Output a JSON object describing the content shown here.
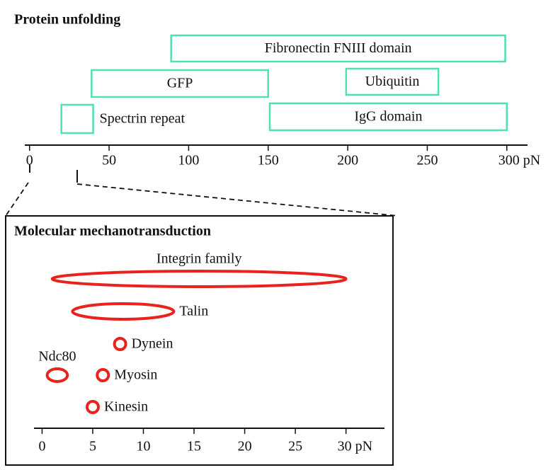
{
  "chart_data": [
    {
      "type": "range-box",
      "title": "Protein unfolding",
      "color": "#4fe0b4",
      "items": [
        {
          "name": "Fibronectin FNIII domain",
          "range": [
            89,
            299
          ]
        },
        {
          "name": "GFP",
          "range": [
            39,
            150
          ]
        },
        {
          "name": "Ubiquitin",
          "range": [
            199,
            257
          ]
        },
        {
          "name": "Spectrin repeat",
          "range": [
            20,
            40
          ]
        },
        {
          "name": "IgG domain",
          "range": [
            151,
            300
          ]
        }
      ],
      "xlim": [
        -3,
        313
      ],
      "xticks": [
        0,
        50,
        100,
        150,
        200,
        250,
        {
          "value": 300,
          "label": "300 pN"
        }
      ]
    },
    {
      "type": "range-ellipse",
      "title": "Molecular mechanotransduction",
      "color": "#e8231e",
      "items": [
        {
          "name": "Integrin family",
          "range": [
            1,
            30
          ]
        },
        {
          "name": "Talin",
          "range": [
            3,
            13
          ]
        },
        {
          "name": "Dynein",
          "value": 7.7
        },
        {
          "name": "Ndc80",
          "range": [
            0.5,
            2.5
          ]
        },
        {
          "name": "Myosin",
          "value": 6
        },
        {
          "name": "Kinesin",
          "value": 5
        }
      ],
      "xlim": [
        -0.8,
        33.8
      ],
      "xticks": [
        0,
        5,
        10,
        15,
        20,
        25,
        {
          "value": 30,
          "label": "30 pN"
        }
      ]
    }
  ]
}
